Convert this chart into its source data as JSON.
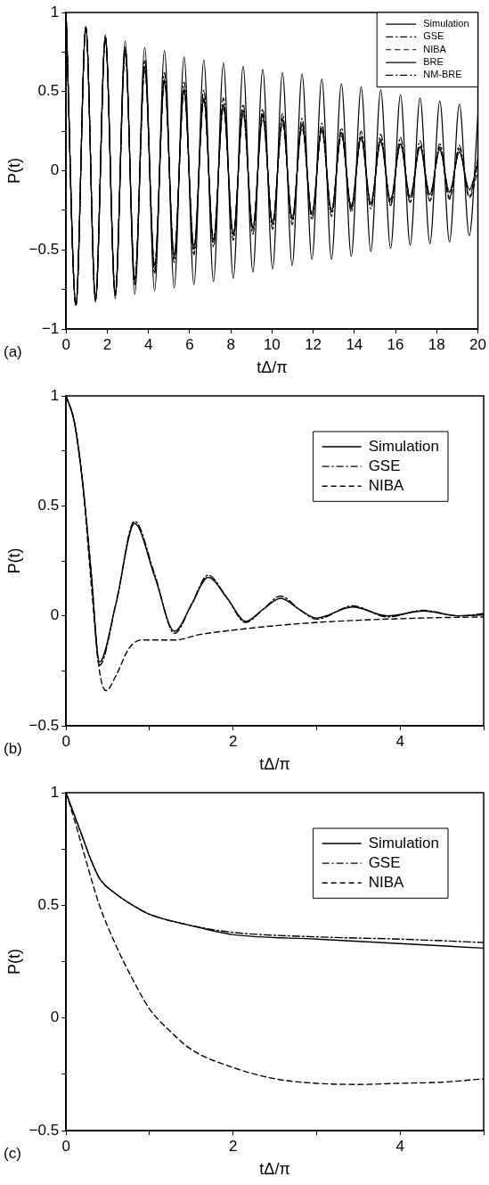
{
  "chart_data": [
    {
      "type": "line",
      "xlabel": "tΔ/π",
      "ylabel": "P(t)",
      "annotations": [
        "(a)"
      ],
      "legend": "top right",
      "marker": "none",
      "grid": false,
      "xlim": [
        0,
        20
      ],
      "xticks": [
        0,
        2,
        4,
        6,
        8,
        10,
        12,
        14,
        16,
        18,
        20
      ],
      "ylim": [
        -1,
        1
      ],
      "yticks": [
        -1,
        {
          "value": -0.75,
          "label": null
        },
        -0.5,
        {
          "value": -0.25,
          "label": null
        },
        0,
        {
          "value": 0.25,
          "label": null
        },
        0.5,
        {
          "value": 0.75,
          "label": null
        },
        1
      ],
      "x": [
        0,
        0.48,
        0.96,
        1.43,
        1.91,
        2.39,
        2.87,
        3.34,
        3.82,
        4.3,
        4.78,
        5.25,
        5.73,
        6.21,
        6.69,
        7.16,
        7.64,
        8.12,
        8.6,
        9.07,
        9.55,
        10.03,
        10.51,
        10.98,
        11.46,
        11.94,
        12.42,
        12.89,
        13.37,
        13.85,
        14.33,
        14.8,
        15.28,
        15.76,
        16.24,
        16.71,
        17.19,
        17.67,
        18.15,
        18.62,
        19.1,
        19.58,
        20
      ],
      "series": [
        {
          "name": "Simulation",
          "color": "#000000",
          "line_style": "solid",
          "values": [
            1,
            -0.85,
            0.91,
            -0.82,
            0.84,
            -0.78,
            0.76,
            -0.7,
            0.66,
            -0.62,
            0.58,
            -0.55,
            0.52,
            -0.5,
            0.46,
            -0.45,
            0.42,
            -0.41,
            0.38,
            -0.37,
            0.36,
            -0.34,
            0.33,
            -0.31,
            0.3,
            -0.28,
            0.27,
            -0.26,
            0.24,
            -0.23,
            0.22,
            -0.21,
            0.19,
            -0.19,
            0.17,
            -0.17,
            0.15,
            -0.15,
            0.14,
            -0.14,
            0.12,
            -0.12,
            0.05
          ]
        },
        {
          "name": "GSE",
          "color": "#000000",
          "line_style": "dashdot",
          "values": [
            1,
            -0.85,
            0.91,
            -0.82,
            0.84,
            -0.77,
            0.75,
            -0.69,
            0.65,
            -0.6,
            0.57,
            -0.54,
            0.51,
            -0.49,
            0.45,
            -0.44,
            0.41,
            -0.4,
            0.38,
            -0.36,
            0.35,
            -0.33,
            0.32,
            -0.3,
            0.29,
            -0.27,
            0.26,
            -0.25,
            0.24,
            -0.22,
            0.21,
            -0.2,
            0.18,
            -0.18,
            0.17,
            -0.16,
            0.15,
            -0.15,
            0.13,
            -0.13,
            0.12,
            -0.12,
            0.04
          ]
        },
        {
          "name": "NIBA",
          "color": "#000000",
          "line_style": "dashed",
          "values": [
            1,
            -0.85,
            0.9,
            -0.82,
            0.83,
            -0.77,
            0.74,
            -0.68,
            0.64,
            -0.6,
            0.56,
            -0.53,
            0.5,
            -0.48,
            0.45,
            -0.43,
            0.4,
            -0.4,
            0.36,
            -0.36,
            0.33,
            -0.33,
            0.3,
            -0.3,
            0.27,
            -0.28,
            0.25,
            -0.26,
            0.22,
            -0.24,
            0.2,
            -0.22,
            0.2,
            -0.21,
            0.17,
            -0.2,
            0.16,
            -0.19,
            0.15,
            -0.18,
            0.14,
            -0.17,
            0
          ]
        },
        {
          "name": "BRE",
          "color": "#000000",
          "line_style": "solid",
          "values": [
            1,
            -0.85,
            0.91,
            -0.83,
            0.86,
            -0.81,
            0.82,
            -0.78,
            0.78,
            -0.76,
            0.76,
            -0.74,
            0.72,
            -0.72,
            0.7,
            -0.7,
            0.68,
            -0.68,
            0.66,
            -0.64,
            0.64,
            -0.62,
            0.62,
            -0.6,
            0.61,
            -0.56,
            0.58,
            -0.56,
            0.55,
            -0.54,
            0.53,
            -0.51,
            0.51,
            -0.49,
            0.48,
            -0.47,
            0.46,
            -0.46,
            0.44,
            -0.45,
            0.42,
            -0.41,
            0.35
          ]
        },
        {
          "name": "NM-BRE",
          "color": "#000000",
          "line_style": "dashdot",
          "values": [
            1,
            -0.85,
            0.91,
            -0.82,
            0.85,
            -0.79,
            0.78,
            -0.72,
            0.7,
            -0.65,
            0.62,
            -0.58,
            0.56,
            -0.53,
            0.51,
            -0.48,
            0.46,
            -0.44,
            0.42,
            -0.4,
            0.39,
            -0.37,
            0.36,
            -0.34,
            0.33,
            -0.31,
            0.3,
            -0.29,
            0.27,
            -0.26,
            0.25,
            -0.24,
            0.23,
            -0.22,
            0.21,
            -0.2,
            0.19,
            -0.19,
            0.17,
            -0.17,
            0.16,
            -0.16,
            0.08
          ]
        }
      ]
    },
    {
      "type": "line",
      "xlabel": "tΔ/π",
      "ylabel": "P(t)",
      "annotations": [
        "(b)"
      ],
      "legend": "top right",
      "marker": "none",
      "grid": false,
      "xlim": [
        0,
        5
      ],
      "xticks": [
        0,
        {
          "value": 1,
          "label": null
        },
        2,
        {
          "value": 3,
          "label": null
        },
        4,
        {
          "value": 5,
          "label": null
        }
      ],
      "ylim": [
        -0.5,
        1
      ],
      "yticks": [
        -0.5,
        {
          "value": -0.25,
          "label": null
        },
        0,
        {
          "value": 0.25,
          "label": null
        },
        0.5,
        {
          "value": 0.75,
          "label": null
        },
        1
      ],
      "series": [
        {
          "name": "Simulation",
          "color": "#000000",
          "line_style": "solid",
          "x": [
            0,
            0.1,
            0.2,
            0.3,
            0.4,
            0.6,
            0.82,
            1.06,
            1.3,
            1.5,
            1.7,
            1.93,
            2.15,
            2.36,
            2.57,
            2.79,
            3.0,
            3.43,
            3.85,
            4.28,
            4.7,
            5
          ],
          "values": [
            1,
            0.88,
            0.6,
            0.2,
            -0.21,
            0.06,
            0.42,
            0.18,
            -0.07,
            0.05,
            0.175,
            0.08,
            -0.025,
            0.03,
            0.08,
            0.03,
            -0.01,
            0.04,
            0,
            0.022,
            0,
            0.005
          ]
        },
        {
          "name": "GSE",
          "color": "#000000",
          "line_style": "dashdot",
          "x": [
            0,
            0.1,
            0.2,
            0.3,
            0.4,
            0.6,
            0.82,
            1.06,
            1.3,
            1.5,
            1.7,
            1.93,
            2.15,
            2.36,
            2.57,
            2.79,
            3.0,
            3.43,
            3.85,
            4.28,
            4.7,
            5
          ],
          "values": [
            1,
            0.88,
            0.6,
            0.2,
            -0.225,
            0.06,
            0.43,
            0.19,
            -0.08,
            0.05,
            0.185,
            0.08,
            -0.03,
            0.03,
            0.09,
            0.03,
            -0.015,
            0.045,
            -0.005,
            0.025,
            0,
            0.01
          ]
        },
        {
          "name": "NIBA",
          "color": "#000000",
          "line_style": "dashed",
          "x": [
            0,
            0.1,
            0.2,
            0.3,
            0.4,
            0.48,
            0.6,
            0.75,
            0.9,
            1.1,
            1.3,
            1.6,
            2,
            2.5,
            3,
            3.5,
            4,
            4.5,
            5
          ],
          "values": [
            1,
            0.88,
            0.6,
            0.15,
            -0.25,
            -0.34,
            -0.27,
            -0.15,
            -0.11,
            -0.11,
            -0.11,
            -0.085,
            -0.065,
            -0.045,
            -0.03,
            -0.02,
            -0.013,
            -0.008,
            -0.005
          ]
        }
      ]
    },
    {
      "type": "line",
      "xlabel": "tΔ/π",
      "ylabel": "P(t)",
      "annotations": [
        "(c)"
      ],
      "legend": "top right",
      "marker": "none",
      "grid": false,
      "xlim": [
        0,
        5
      ],
      "xticks": [
        0,
        {
          "value": 1,
          "label": null
        },
        2,
        {
          "value": 3,
          "label": null
        },
        4,
        {
          "value": 5,
          "label": null
        }
      ],
      "ylim": [
        -0.5,
        1
      ],
      "yticks": [
        -0.5,
        {
          "value": -0.25,
          "label": null
        },
        0,
        {
          "value": 0.25,
          "label": null
        },
        0.5,
        {
          "value": 0.75,
          "label": null
        },
        1
      ],
      "series": [
        {
          "name": "Simulation",
          "color": "#000000",
          "line_style": "solid",
          "x": [
            0,
            0.1,
            0.2,
            0.3,
            0.4,
            0.6,
            0.8,
            1,
            1.5,
            2,
            3,
            4,
            5
          ],
          "values": [
            1,
            0.9,
            0.8,
            0.7,
            0.62,
            0.55,
            0.5,
            0.46,
            0.41,
            0.37,
            0.35,
            0.33,
            0.31
          ]
        },
        {
          "name": "GSE",
          "color": "#000000",
          "line_style": "dashdot",
          "x": [
            0,
            0.1,
            0.2,
            0.3,
            0.4,
            0.6,
            0.8,
            1,
            1.5,
            2,
            3,
            4,
            5
          ],
          "values": [
            1,
            0.9,
            0.8,
            0.7,
            0.62,
            0.55,
            0.5,
            0.46,
            0.41,
            0.38,
            0.36,
            0.35,
            0.335
          ]
        },
        {
          "name": "NIBA",
          "color": "#000000",
          "line_style": "dashed",
          "x": [
            0,
            0.1,
            0.2,
            0.3,
            0.4,
            0.6,
            0.8,
            1,
            1.25,
            1.5,
            2,
            2.5,
            3,
            3.5,
            4,
            4.5,
            5
          ],
          "values": [
            1,
            0.88,
            0.75,
            0.62,
            0.5,
            0.32,
            0.17,
            0.04,
            -0.06,
            -0.14,
            -0.22,
            -0.27,
            -0.29,
            -0.295,
            -0.29,
            -0.285,
            -0.27
          ]
        }
      ]
    }
  ]
}
